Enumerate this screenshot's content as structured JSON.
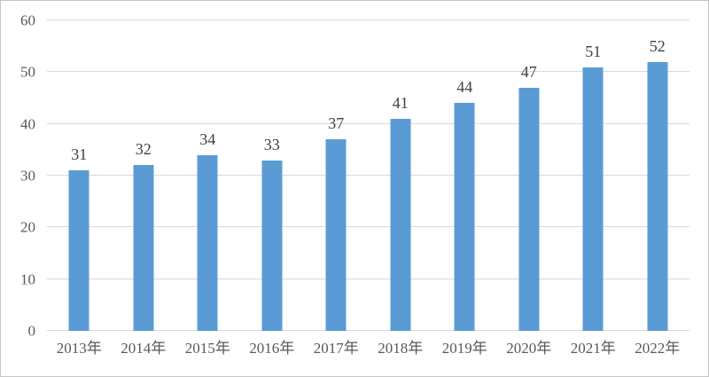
{
  "chart_data": {
    "type": "bar",
    "categories": [
      "2013年",
      "2014年",
      "2015年",
      "2016年",
      "2017年",
      "2018年",
      "2019年",
      "2020年",
      "2021年",
      "2022年"
    ],
    "values": [
      31,
      32,
      34,
      33,
      37,
      41,
      44,
      47,
      51,
      52
    ],
    "title": "",
    "xlabel": "",
    "ylabel": "",
    "ylim": [
      0,
      60
    ],
    "yticks": [
      0,
      10,
      20,
      30,
      40,
      50,
      60
    ],
    "data_labels": [
      "31",
      "32",
      "34",
      "33",
      "37",
      "41",
      "44",
      "47",
      "51",
      "52"
    ],
    "grid": true,
    "legend_position": "none",
    "bar_color": "#5b9bd5",
    "gridline_color": "#d9d9d9",
    "tick_label_color": "#595959",
    "data_label_color": "#3f3f3f",
    "background_color": "#ffffff",
    "border_color": "#c6c6c6"
  }
}
